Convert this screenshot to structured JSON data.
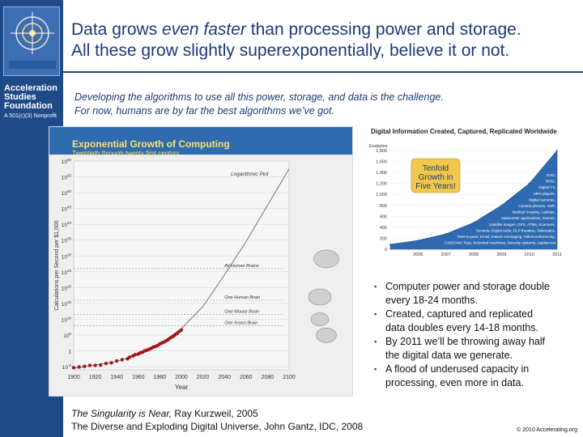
{
  "sidebar": {
    "org_name_lines": [
      "Acceleration",
      "Studies",
      "Foundation"
    ],
    "org_subtitle": "A 501(c)(3) Nonprofit"
  },
  "title": {
    "line1_pre": "Data grows ",
    "line1_em": "even faster",
    "line1_post": " than processing power and storage.",
    "line2": "All these grow slightly superexponentially, believe it or not."
  },
  "intro": {
    "line1": "Developing the algorithms to use all this power, storage, and data is the challenge.",
    "line2": "For now, humans are by far the best algorithms we’ve got."
  },
  "colors": {
    "sidebar": "#1e4a87",
    "title": "#1c3a78",
    "chart_header": "#2e6bb0",
    "chart_title": "#ffe066",
    "kz_points": "#b01818",
    "idc_area": "#2f6ab1",
    "callout_fill": "#f1c84b"
  },
  "chart_data": [
    {
      "type": "scatter",
      "title": "Exponential Growth of Computing",
      "subtitle": "Twentieth through twenty first century",
      "xlabel": "Year",
      "ylabel": "Calculations per Second per $1,000",
      "scale_label": "Logarithmic Plot",
      "y_scale": "log",
      "xlim": [
        1900,
        2100
      ],
      "ylim_exponent": [
        -6,
        60
      ],
      "x_ticks": [
        1900,
        1920,
        1940,
        1960,
        1980,
        2000,
        2020,
        2040,
        2060,
        2080,
        2100
      ],
      "y_ticks_exponent": [
        60,
        55,
        50,
        45,
        40,
        35,
        30,
        25,
        20,
        15,
        10,
        5,
        0,
        -5
      ],
      "y_tick_labels": [
        "10^60",
        "10^55",
        "10^50",
        "10^45",
        "10^40",
        "10^35",
        "10^30",
        "10^25",
        "10^20",
        "10^15",
        "10^10",
        "10^5",
        "1",
        "10^-5"
      ],
      "points_exponent": [
        [
          1900,
          -5.3
        ],
        [
          1905,
          -5.1
        ],
        [
          1910,
          -4.9
        ],
        [
          1915,
          -4.6
        ],
        [
          1920,
          -4.6
        ],
        [
          1925,
          -4.5
        ],
        [
          1930,
          -4.0
        ],
        [
          1935,
          -3.8
        ],
        [
          1940,
          -3.2
        ],
        [
          1945,
          -2.8
        ],
        [
          1950,
          -2.5
        ],
        [
          1952,
          -2.0
        ],
        [
          1955,
          -1.6
        ],
        [
          1957,
          -1.2
        ],
        [
          1960,
          -1.0
        ],
        [
          1962,
          -0.6
        ],
        [
          1964,
          -0.4
        ],
        [
          1966,
          0.0
        ],
        [
          1968,
          0.2
        ],
        [
          1970,
          0.5
        ],
        [
          1972,
          0.8
        ],
        [
          1974,
          1.2
        ],
        [
          1976,
          1.4
        ],
        [
          1978,
          1.7
        ],
        [
          1980,
          2.2
        ],
        [
          1982,
          2.5
        ],
        [
          1984,
          2.8
        ],
        [
          1986,
          3.2
        ],
        [
          1988,
          3.6
        ],
        [
          1990,
          4.1
        ],
        [
          1992,
          4.5
        ],
        [
          1994,
          5.0
        ],
        [
          1996,
          5.5
        ],
        [
          1998,
          6.1
        ],
        [
          2000,
          6.6
        ]
      ],
      "trend_curve_exponent": [
        [
          1900,
          -5.5
        ],
        [
          1920,
          -4.5
        ],
        [
          1940,
          -3.3
        ],
        [
          1960,
          -1.2
        ],
        [
          1980,
          2.2
        ],
        [
          2000,
          7.0
        ],
        [
          2020,
          14.0
        ],
        [
          2040,
          24.0
        ],
        [
          2060,
          34.5
        ],
        [
          2080,
          46.0
        ],
        [
          2100,
          57.5
        ]
      ],
      "reference_lines": [
        {
          "label": "All Human Brains",
          "exponent": 26
        },
        {
          "label": "One Human Brain",
          "exponent": 16
        },
        {
          "label": "One Mouse Brain",
          "exponent": 11.5
        },
        {
          "label": "One Insect Brain",
          "exponent": 8
        }
      ]
    },
    {
      "type": "area",
      "title": "Digital Information Created, Captured, Replicated Worldwide",
      "ylabel": "Exabytes",
      "callout_lines": [
        "Tenfold",
        "Growth in",
        "Five Years!"
      ],
      "x": [
        "2005",
        "2006",
        "2007",
        "2008",
        "2009",
        "2010",
        "2011"
      ],
      "values": [
        90,
        161,
        281,
        487,
        800,
        1200,
        1800
      ],
      "ylim": [
        0,
        1800
      ],
      "y_ticks": [
        0,
        200,
        400,
        600,
        800,
        1000,
        1200,
        1400,
        1600,
        1800
      ],
      "x_ticks": [
        "2006",
        "2007",
        "2008",
        "2009",
        "2010",
        "2011"
      ],
      "annotations": [
        "DVD,",
        "RFID,",
        "Digital TV,",
        "MP3 players,",
        "Digital cameras,",
        "Camera phones, VoIP,",
        "Medical imaging, Laptops,",
        "Datacenter applications, Games,",
        "Satellite images, GPS, ATMs, Scanners,",
        "Sensors, Digital radio, DLP theaters, Telematics,",
        "Peer-to-peer, Email, Instant messaging, Videoconferencing,",
        "CAD/CAM, Toys, Industrial machines, Security systems, Appliances"
      ]
    }
  ],
  "bullets": [
    [
      "Computer power and storage double",
      "every 18-24 months."
    ],
    [
      "Created, captured and replicated",
      "data doubles every 14-18 months."
    ],
    [
      "By 2011 we’ll be throwing away half",
      "the digital data we generate."
    ],
    [
      "A flood of underused capacity in",
      "processing, even more in data."
    ]
  ],
  "sources": {
    "line1_em": "The Singularity is Near,",
    "line1_rest": " Ray Kurzweil, 2005",
    "line2": "The Diverse and Exploding Digital Universe,  John Gantz, IDC, 2008"
  },
  "copyright": "© 2010 Accelerating.org"
}
